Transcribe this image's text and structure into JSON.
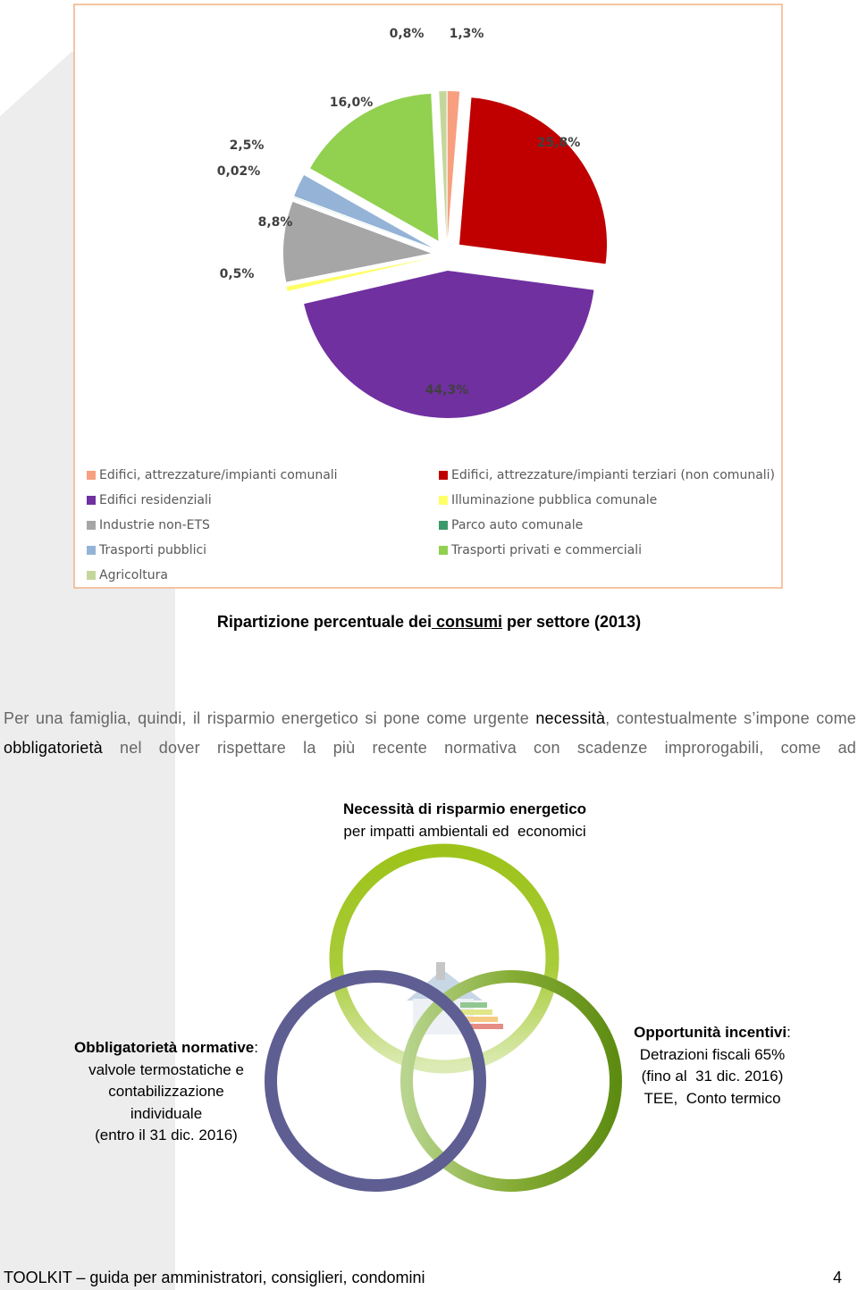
{
  "chart_data": {
    "type": "pie",
    "categories": [
      "Edifici, attrezzature/impianti comunali",
      "Edifici, attrezzature/impianti terziari (non comunali)",
      "Edifici residenziali",
      "Illuminazione pubblica comunale",
      "Industrie non-ETS",
      "Parco auto comunale",
      "Trasporti pubblici",
      "Trasporti privati e commerciali",
      "Agricoltura"
    ],
    "values": [
      1.3,
      25.8,
      44.3,
      0.5,
      8.8,
      0.02,
      2.5,
      16.0,
      0.8
    ],
    "value_labels": [
      "1,3%",
      "25,8%",
      "44,3%",
      "0,5%",
      "8,8%",
      "0,02%",
      "2,5%",
      "16,0%",
      "0,8%"
    ],
    "colors": [
      "#f79f7f",
      "#c00000",
      "#7030a0",
      "#ffff66",
      "#a6a6a6",
      "#3a9a6a",
      "#95b3d7",
      "#92d050",
      "#c4d79b"
    ],
    "legend": "bottom"
  },
  "caption": {
    "before": "Ripartizione percentuale dei",
    "underlined": " consumi",
    "after": " per settore (2013)"
  },
  "paragraph": [
    "Per una famiglia, quindi, il risparmio energetico si pone come urgente ",
    "necessità",
    ", contestualmente s’impone come ",
    "obbligatorietà",
    " nel dover rispettare la più recente normativa con scadenze improrogabili, come ad"
  ],
  "diagram": {
    "top": {
      "title": "Necessità di risparmio energetico",
      "text": "per impatti ambientali ed  economici"
    },
    "left": {
      "title": "Obbligatorietà normative",
      "separator": ":",
      "lines": [
        "valvole termostatiche e",
        "contabilizzazione",
        "individuale",
        "(entro il 31 dic. 2016)"
      ]
    },
    "right": {
      "title": "Opportunità incentivi",
      "separator": ":",
      "lines": [
        "Detrazioni fiscali 65%",
        "(fino al  31 dic. 2016)",
        "TEE,  Conto termico"
      ]
    }
  },
  "footer": {
    "text": "TOOLKIT – guida per amministratori, consiglieri, condomini",
    "page": "4"
  }
}
